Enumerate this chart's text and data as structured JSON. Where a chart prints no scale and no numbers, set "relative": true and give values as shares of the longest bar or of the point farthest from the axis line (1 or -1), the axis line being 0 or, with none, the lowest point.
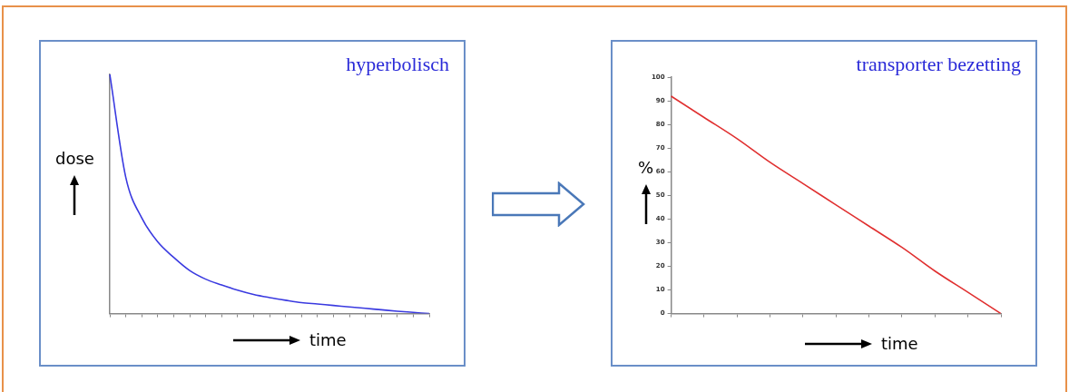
{
  "chart_data": [
    {
      "type": "line",
      "title": "hyperbolisch",
      "xlabel": "time",
      "ylabel": "dose",
      "relative": true,
      "color": "#3a3ae0",
      "grid": false,
      "legend": false,
      "marker": "none",
      "categories": [
        null,
        null,
        null,
        null,
        null,
        null,
        null,
        null,
        null,
        null,
        null,
        null,
        null,
        null,
        null,
        null,
        null,
        null,
        null,
        null,
        null
      ],
      "values": [
        1.0,
        0.57,
        0.4,
        0.3,
        0.235,
        0.18,
        0.144,
        0.12,
        0.098,
        0.08,
        0.067,
        0.056,
        0.046,
        0.04,
        0.034,
        0.028,
        0.022,
        0.016,
        0.01,
        0.005,
        0
      ]
    },
    {
      "type": "line",
      "title": "transporter bezetting",
      "xlabel": "time",
      "ylabel": "%",
      "color": "#e03030",
      "grid": false,
      "legend": false,
      "marker": "none",
      "categories": [
        null,
        null,
        null,
        null,
        null,
        null,
        null,
        null,
        null,
        null,
        null
      ],
      "values": [
        92,
        83,
        74,
        64,
        55,
        46,
        37,
        28,
        18,
        9,
        0
      ],
      "ylim": [
        0,
        100
      ],
      "yticks": [
        0,
        10,
        20,
        30,
        40,
        50,
        60,
        70,
        80,
        90,
        100
      ]
    }
  ]
}
